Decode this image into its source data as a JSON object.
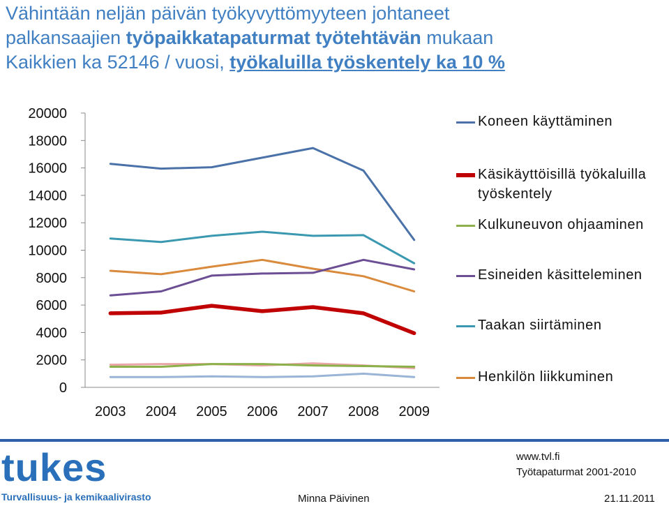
{
  "title": {
    "line1": "Vähintään neljän päivän työkyvyttömyyteen johtaneet",
    "line2_prefix": "palkansaajien ",
    "line2_bold": "työpaikkatapaturmat työtehtävän",
    "line2_suffix": " mukaan",
    "line3_prefix": "Kaikkien ka 52146 / vuosi, ",
    "line3_emph": "työkaluilla työskentely ka 10 %"
  },
  "chart_data": {
    "type": "line",
    "categories": [
      "2003",
      "2004",
      "2005",
      "2006",
      "2007",
      "2008",
      "2009"
    ],
    "ylim": [
      0,
      20000
    ],
    "yticks": [
      "0",
      "2000",
      "4000",
      "6000",
      "8000",
      "10000",
      "12000",
      "14000",
      "16000",
      "18000",
      "20000"
    ],
    "grid": false,
    "legend_position": "right",
    "series": [
      {
        "name": "Koneen käyttäminen",
        "color": "#4a72a8",
        "values": [
          16300,
          15950,
          16050,
          16750,
          17450,
          15800,
          10750
        ]
      },
      {
        "name": "Taakan siirtäminen",
        "color": "#3a99b0",
        "values": [
          10850,
          10600,
          11050,
          11350,
          11050,
          11100,
          9050
        ]
      },
      {
        "name": "Henkilön liikkuminen",
        "color": "#d98a3c",
        "values": [
          8500,
          8250,
          8800,
          9300,
          8650,
          8100,
          7000
        ]
      },
      {
        "name": "Esineiden käsitteleminen",
        "color": "#6b4e94",
        "values": [
          6700,
          7000,
          8150,
          8300,
          8350,
          9300,
          8600
        ]
      },
      {
        "name": "Käsikäyttöisillä työkaluilla työskentely",
        "color": "#c00000",
        "values": [
          5400,
          5450,
          5950,
          5550,
          5850,
          5400,
          3950
        ]
      },
      {
        "name": "Kulkuneuvon ohjaaminen",
        "color": "#8cb04a",
        "values": [
          1500,
          1500,
          1700,
          1700,
          1600,
          1550,
          1500
        ]
      },
      {
        "name": "",
        "color": "#e8a6a6",
        "values": [
          1650,
          1700,
          1700,
          1600,
          1750,
          1600,
          1400
        ]
      },
      {
        "name": "",
        "color": "#99b4d6",
        "values": [
          750,
          750,
          800,
          750,
          800,
          1000,
          750
        ]
      }
    ]
  },
  "legend": [
    {
      "label": "Koneen käyttäminen",
      "color": "#4a72a8"
    },
    {
      "label": "Käsikäyttöisillä työkaluilla työskentely",
      "color": "#c00000"
    },
    {
      "label": "Kulkuneuvon ohjaaminen",
      "color": "#8cb04a"
    },
    {
      "label": "Esineiden käsitteleminen",
      "color": "#6b4e94"
    },
    {
      "label": "Taakan siirtäminen",
      "color": "#3a99b0"
    },
    {
      "label": "Henkilön liikkuminen",
      "color": "#d98a3c"
    }
  ],
  "footer": {
    "logo_word": "tukes",
    "logo_sub": "Turvallisuus- ja kemikaalivirasto",
    "url": "www.tvl.fi",
    "source": "Työtapaturmat 2001-2010",
    "author": "Minna Päivinen",
    "date": "21.11.2011",
    "accent_color": "#2a6fb9"
  }
}
